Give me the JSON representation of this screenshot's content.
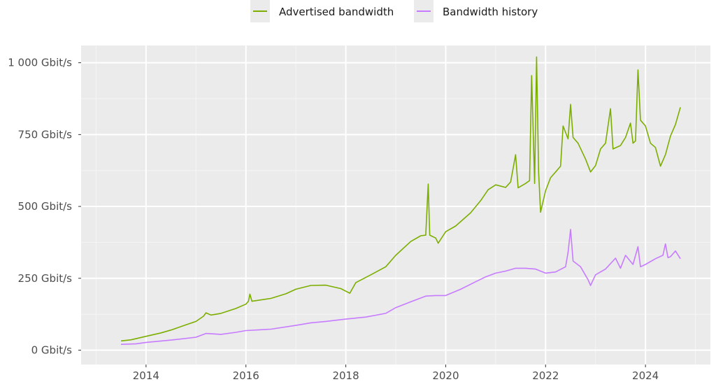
{
  "chart_data": {
    "type": "line",
    "title": "",
    "xlabel": "",
    "ylabel": "",
    "legend_position": "top",
    "grid": true,
    "xlim": [
      2012.7,
      2025.3
    ],
    "ylim": [
      -50,
      1060
    ],
    "x_ticks": [
      {
        "value": 2014,
        "label": "2014"
      },
      {
        "value": 2016,
        "label": "2016"
      },
      {
        "value": 2018,
        "label": "2018"
      },
      {
        "value": 2020,
        "label": "2020"
      },
      {
        "value": 2022,
        "label": "2022"
      },
      {
        "value": 2024,
        "label": "2024"
      }
    ],
    "y_ticks": [
      {
        "value": 0,
        "label": "0 Gbit/s"
      },
      {
        "value": 250,
        "label": "250 Gbit/s"
      },
      {
        "value": 500,
        "label": "500 Gbit/s"
      },
      {
        "value": 750,
        "label": "750 Gbit/s"
      },
      {
        "value": 1000,
        "label": "1 000 Gbit/s"
      }
    ],
    "series": [
      {
        "name": "Advertised bandwidth",
        "color": "#7cae00",
        "points": [
          [
            2013.5,
            32
          ],
          [
            2013.7,
            36
          ],
          [
            2014.0,
            48
          ],
          [
            2014.3,
            60
          ],
          [
            2014.5,
            70
          ],
          [
            2014.8,
            88
          ],
          [
            2015.0,
            100
          ],
          [
            2015.15,
            118
          ],
          [
            2015.2,
            130
          ],
          [
            2015.3,
            122
          ],
          [
            2015.5,
            128
          ],
          [
            2015.8,
            145
          ],
          [
            2016.0,
            160
          ],
          [
            2016.05,
            170
          ],
          [
            2016.08,
            195
          ],
          [
            2016.12,
            170
          ],
          [
            2016.5,
            180
          ],
          [
            2016.8,
            196
          ],
          [
            2017.0,
            212
          ],
          [
            2017.3,
            225
          ],
          [
            2017.6,
            226
          ],
          [
            2017.9,
            214
          ],
          [
            2018.0,
            205
          ],
          [
            2018.08,
            198
          ],
          [
            2018.2,
            235
          ],
          [
            2018.5,
            262
          ],
          [
            2018.8,
            290
          ],
          [
            2019.0,
            330
          ],
          [
            2019.3,
            378
          ],
          [
            2019.5,
            398
          ],
          [
            2019.6,
            400
          ],
          [
            2019.65,
            578
          ],
          [
            2019.68,
            400
          ],
          [
            2019.8,
            390
          ],
          [
            2019.85,
            372
          ],
          [
            2020.0,
            412
          ],
          [
            2020.2,
            432
          ],
          [
            2020.5,
            478
          ],
          [
            2020.7,
            520
          ],
          [
            2020.85,
            558
          ],
          [
            2021.0,
            575
          ],
          [
            2021.2,
            566
          ],
          [
            2021.3,
            585
          ],
          [
            2021.4,
            680
          ],
          [
            2021.45,
            565
          ],
          [
            2021.6,
            580
          ],
          [
            2021.68,
            590
          ],
          [
            2021.72,
            955
          ],
          [
            2021.78,
            580
          ],
          [
            2021.82,
            1020
          ],
          [
            2021.86,
            620
          ],
          [
            2021.9,
            480
          ],
          [
            2022.0,
            555
          ],
          [
            2022.1,
            600
          ],
          [
            2022.2,
            620
          ],
          [
            2022.3,
            640
          ],
          [
            2022.35,
            780
          ],
          [
            2022.45,
            735
          ],
          [
            2022.5,
            855
          ],
          [
            2022.55,
            740
          ],
          [
            2022.65,
            720
          ],
          [
            2022.8,
            665
          ],
          [
            2022.9,
            620
          ],
          [
            2023.0,
            642
          ],
          [
            2023.1,
            700
          ],
          [
            2023.2,
            720
          ],
          [
            2023.3,
            840
          ],
          [
            2023.35,
            700
          ],
          [
            2023.5,
            712
          ],
          [
            2023.6,
            740
          ],
          [
            2023.7,
            790
          ],
          [
            2023.75,
            720
          ],
          [
            2023.8,
            728
          ],
          [
            2023.85,
            975
          ],
          [
            2023.9,
            800
          ],
          [
            2024.0,
            780
          ],
          [
            2024.1,
            720
          ],
          [
            2024.2,
            705
          ],
          [
            2024.3,
            640
          ],
          [
            2024.4,
            680
          ],
          [
            2024.5,
            745
          ],
          [
            2024.6,
            785
          ],
          [
            2024.7,
            845
          ]
        ]
      },
      {
        "name": "Bandwidth history",
        "color": "#c77cff",
        "points": [
          [
            2013.5,
            20
          ],
          [
            2013.8,
            22
          ],
          [
            2014.0,
            27
          ],
          [
            2014.5,
            35
          ],
          [
            2015.0,
            45
          ],
          [
            2015.2,
            58
          ],
          [
            2015.5,
            55
          ],
          [
            2015.8,
            62
          ],
          [
            2016.0,
            68
          ],
          [
            2016.5,
            73
          ],
          [
            2017.0,
            86
          ],
          [
            2017.3,
            95
          ],
          [
            2017.6,
            100
          ],
          [
            2018.0,
            108
          ],
          [
            2018.4,
            115
          ],
          [
            2018.8,
            128
          ],
          [
            2019.0,
            148
          ],
          [
            2019.3,
            168
          ],
          [
            2019.6,
            188
          ],
          [
            2019.8,
            190
          ],
          [
            2020.0,
            190
          ],
          [
            2020.3,
            212
          ],
          [
            2020.6,
            238
          ],
          [
            2020.8,
            255
          ],
          [
            2021.0,
            268
          ],
          [
            2021.2,
            275
          ],
          [
            2021.4,
            285
          ],
          [
            2021.6,
            285
          ],
          [
            2021.8,
            282
          ],
          [
            2022.0,
            268
          ],
          [
            2022.2,
            272
          ],
          [
            2022.4,
            290
          ],
          [
            2022.45,
            340
          ],
          [
            2022.5,
            420
          ],
          [
            2022.55,
            310
          ],
          [
            2022.7,
            290
          ],
          [
            2022.85,
            245
          ],
          [
            2022.9,
            225
          ],
          [
            2023.0,
            262
          ],
          [
            2023.2,
            282
          ],
          [
            2023.4,
            320
          ],
          [
            2023.5,
            285
          ],
          [
            2023.6,
            330
          ],
          [
            2023.75,
            298
          ],
          [
            2023.85,
            360
          ],
          [
            2023.9,
            290
          ],
          [
            2024.0,
            298
          ],
          [
            2024.2,
            318
          ],
          [
            2024.35,
            330
          ],
          [
            2024.4,
            370
          ],
          [
            2024.45,
            322
          ],
          [
            2024.5,
            325
          ],
          [
            2024.6,
            345
          ],
          [
            2024.7,
            318
          ]
        ]
      }
    ]
  }
}
